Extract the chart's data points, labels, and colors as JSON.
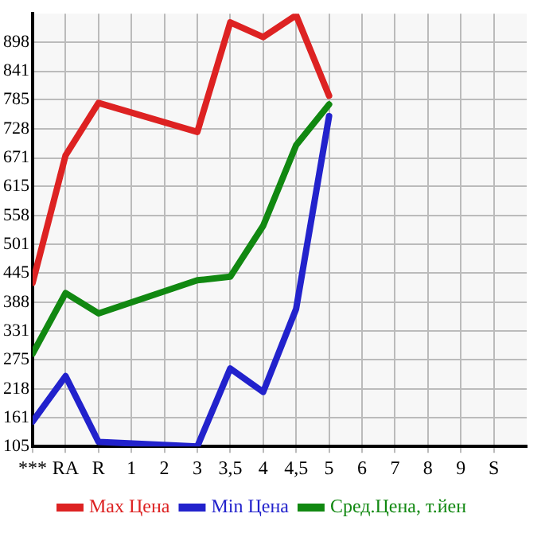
{
  "chart_data": {
    "type": "line",
    "categories": [
      "***",
      "RA",
      "R",
      "1",
      "2",
      "3",
      "3,5",
      "4",
      "4,5",
      "5",
      "6",
      "7",
      "8",
      "9",
      "S"
    ],
    "series": [
      {
        "name": "Max Цена",
        "color": "#dd2222",
        "values": [
          426,
          676,
          779,
          null,
          null,
          722,
          937,
          908,
          951,
          793,
          null,
          null,
          null,
          null,
          null
        ]
      },
      {
        "name": "Min Цена",
        "color": "#2222cc",
        "values": [
          154,
          243,
          114,
          null,
          null,
          105,
          258,
          212,
          375,
          753,
          null,
          null,
          null,
          null,
          null
        ]
      },
      {
        "name": "Сред.Цена, т.йен",
        "color": "#118811",
        "values": [
          287,
          406,
          366,
          null,
          null,
          431,
          438,
          538,
          696,
          776,
          null,
          null,
          null,
          null,
          null
        ]
      }
    ],
    "ylim": [
      105,
      954
    ],
    "yticks": [
      105,
      161,
      218,
      275,
      331,
      388,
      445,
      501,
      558,
      615,
      671,
      728,
      785,
      841,
      898
    ],
    "grid": true,
    "legend": "bottom",
    "marker": "none",
    "line_style": "solid"
  }
}
